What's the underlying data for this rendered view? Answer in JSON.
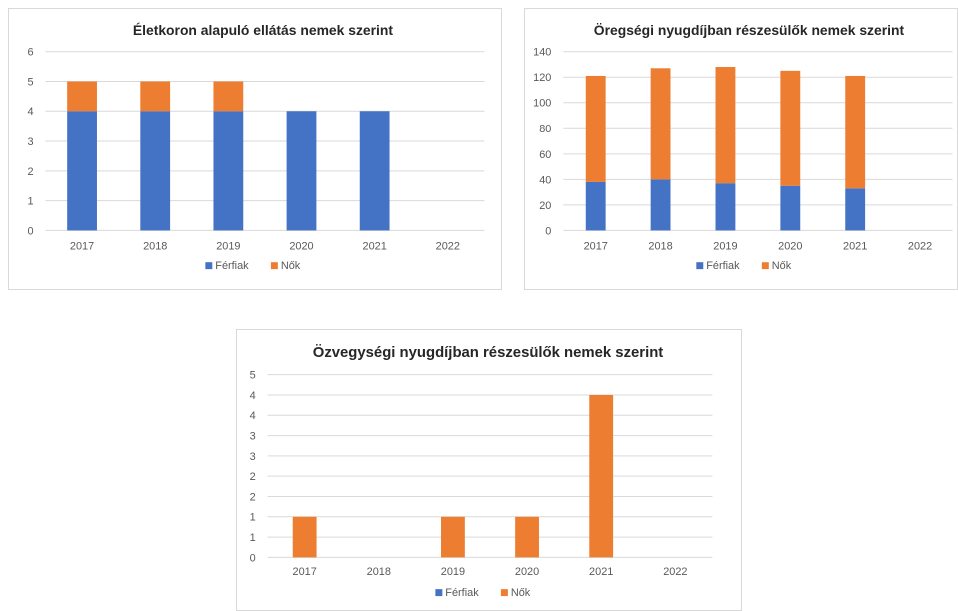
{
  "colors": {
    "men": "#4472c4",
    "women": "#ed7d31",
    "grid": "#d9d9d9",
    "text": "#595959",
    "title": "#262626"
  },
  "chart_data": [
    {
      "type": "bar",
      "stacked": true,
      "title": "Életkoron alapuló ellátás nemek szerint",
      "categories": [
        "2017",
        "2018",
        "2019",
        "2020",
        "2021",
        "2022"
      ],
      "ylim": [
        0,
        6
      ],
      "yticks": [
        "0",
        "1",
        "2",
        "3",
        "4",
        "5",
        "6"
      ],
      "grid": true,
      "legend_position": "bottom",
      "series": [
        {
          "name": "Férfiak",
          "values": [
            4,
            4,
            4,
            4,
            4,
            0
          ]
        },
        {
          "name": "Nők",
          "values": [
            1,
            1,
            1,
            0,
            0,
            0
          ]
        }
      ]
    },
    {
      "type": "bar",
      "stacked": true,
      "title": "Öregségi nyugdíjban részesülők nemek szerint",
      "categories": [
        "2017",
        "2018",
        "2019",
        "2020",
        "2021",
        "2022"
      ],
      "ylim": [
        0,
        140
      ],
      "yticks": [
        "0",
        "20",
        "40",
        "60",
        "80",
        "100",
        "120",
        "140"
      ],
      "grid": true,
      "legend_position": "bottom",
      "series": [
        {
          "name": "Férfiak",
          "values": [
            38,
            40,
            37,
            35,
            33,
            0
          ]
        },
        {
          "name": "Nők",
          "values": [
            83,
            87,
            91,
            90,
            88,
            0
          ]
        }
      ]
    },
    {
      "type": "bar",
      "stacked": true,
      "title": "Özvegységi nyugdíjban részesülők nemek szerint",
      "categories": [
        "2017",
        "2018",
        "2019",
        "2020",
        "2021",
        "2022"
      ],
      "ylim": [
        0,
        4.5
      ],
      "yticks": [
        "0",
        "1",
        "1",
        "2",
        "2",
        "3",
        "3",
        "4",
        "4",
        "5"
      ],
      "grid": true,
      "legend_position": "bottom",
      "series": [
        {
          "name": "Férfiak",
          "values": [
            0,
            0,
            0,
            0,
            0,
            0
          ]
        },
        {
          "name": "Nők",
          "values": [
            1,
            0,
            1,
            1,
            4,
            0
          ]
        }
      ]
    }
  ]
}
